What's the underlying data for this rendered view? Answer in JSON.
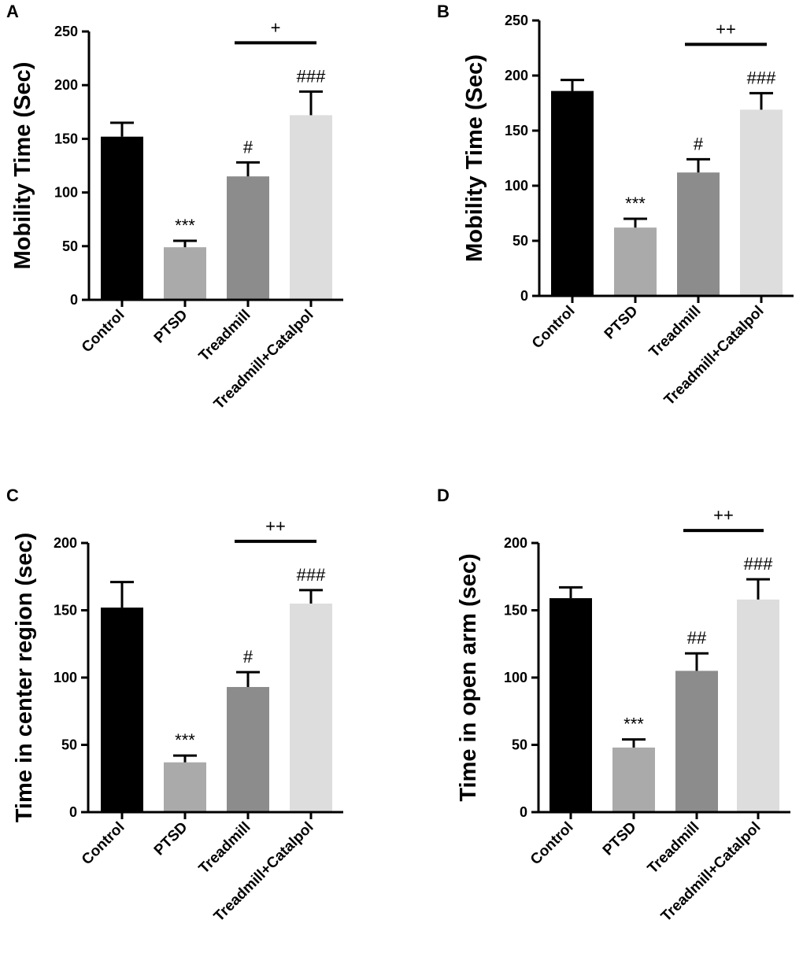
{
  "chart_data": [
    {
      "panel": "A",
      "type": "bar",
      "ylabel": "Mobility Time (Sec)",
      "ylim": [
        0,
        250
      ],
      "yticks": [
        0,
        50,
        100,
        150,
        200,
        250
      ],
      "categories": [
        "Control",
        "PTSD",
        "Treadmill",
        "Treadmill+Catalpol"
      ],
      "values": [
        152,
        49,
        115,
        172
      ],
      "errors": [
        13,
        6,
        13,
        22
      ],
      "colors": [
        "#000000",
        "#aaaaaa",
        "#8c8c8c",
        "#dddddd"
      ],
      "annotations": [
        "",
        "***",
        "#",
        "###"
      ],
      "comparison": {
        "from": 2,
        "to": 3,
        "label": "+"
      }
    },
    {
      "panel": "B",
      "type": "bar",
      "ylabel": "Mobility Time (Sec)",
      "ylim": [
        0,
        250
      ],
      "yticks": [
        0,
        50,
        100,
        150,
        200,
        250
      ],
      "categories": [
        "Control",
        "PTSD",
        "Treadmill",
        "Treadmill+Catalpol"
      ],
      "values": [
        186,
        62,
        112,
        169
      ],
      "errors": [
        10,
        8,
        12,
        15
      ],
      "colors": [
        "#000000",
        "#aaaaaa",
        "#8c8c8c",
        "#dddddd"
      ],
      "annotations": [
        "",
        "***",
        "#",
        "###"
      ],
      "comparison": {
        "from": 2,
        "to": 3,
        "label": "++"
      }
    },
    {
      "panel": "C",
      "type": "bar",
      "ylabel": "Time in center region (sec)",
      "ylim": [
        0,
        200
      ],
      "yticks": [
        0,
        50,
        100,
        150,
        200
      ],
      "categories": [
        "Control",
        "PTSD",
        "Treadmill",
        "Treadmill+Catalpol"
      ],
      "values": [
        152,
        37,
        93,
        155
      ],
      "errors": [
        19,
        5,
        11,
        10
      ],
      "colors": [
        "#000000",
        "#aaaaaa",
        "#8c8c8c",
        "#dddddd"
      ],
      "annotations": [
        "",
        "***",
        "#",
        "###"
      ],
      "comparison": {
        "from": 2,
        "to": 3,
        "label": "++"
      }
    },
    {
      "panel": "D",
      "type": "bar",
      "ylabel": "Time in open arm (sec)",
      "ylim": [
        0,
        200
      ],
      "yticks": [
        0,
        50,
        100,
        150,
        200
      ],
      "categories": [
        "Control",
        "PTSD",
        "Treadmill",
        "Treadmill+Catalpol"
      ],
      "values": [
        159,
        48,
        105,
        158
      ],
      "errors": [
        8,
        6,
        13,
        15
      ],
      "colors": [
        "#000000",
        "#aaaaaa",
        "#8c8c8c",
        "#dddddd"
      ],
      "annotations": [
        "",
        "***",
        "##",
        "###"
      ],
      "comparison": {
        "from": 2,
        "to": 3,
        "label": "++"
      }
    }
  ]
}
